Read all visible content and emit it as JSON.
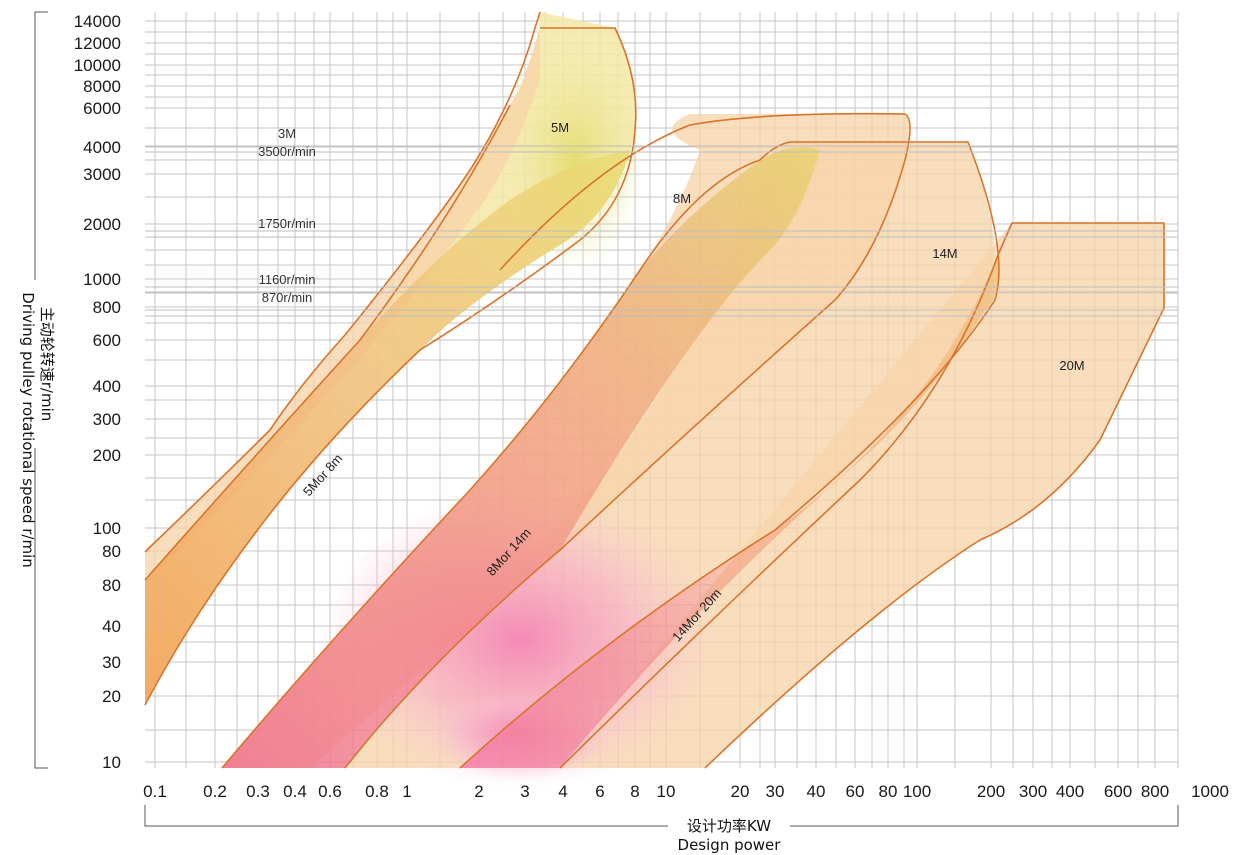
{
  "chart_data": {
    "type": "area",
    "x_scale": "log",
    "y_scale": "log",
    "xlabel_cn": "设计功率KW",
    "xlabel_en": "Design power",
    "ylabel_cn": "主动轮转速r/min",
    "ylabel_en": "Driving pulley rotational speed r/min",
    "x_ticks": [
      "0.1",
      "0.2",
      "0.3",
      "0.4",
      "0.6",
      "0.8",
      "1",
      "2",
      "3",
      "4",
      "6",
      "8",
      "10",
      "20",
      "30",
      "40",
      "60",
      "80",
      "100",
      "200",
      "300",
      "400",
      "600",
      "800",
      "1000"
    ],
    "y_ticks": [
      "10",
      "20",
      "30",
      "40",
      "80",
      "80",
      "100",
      "200",
      "300",
      "400",
      "600",
      "800",
      "1000",
      "2000",
      "3000",
      "4000",
      "6000",
      "8000",
      "10000",
      "12000",
      "14000"
    ],
    "speed_marks": [
      {
        "label": "3500r/min",
        "above": "3M"
      },
      {
        "label": "1750r/min"
      },
      {
        "label": "1160r/min"
      },
      {
        "label": "870r/min"
      }
    ],
    "regions": [
      {
        "name": "5M",
        "label": "5M"
      },
      {
        "name": "8M",
        "label": "8M"
      },
      {
        "name": "14M",
        "label": "14M"
      },
      {
        "name": "20M",
        "label": "20M"
      }
    ],
    "band_labels": [
      "5Mor 8m",
      "8Mor 14m",
      "14Mor 20m"
    ],
    "colors": {
      "outline": "#d9742a",
      "fill": "#f7d3a8",
      "band": "#ee7d6f",
      "pink": "#f49ac0",
      "yellow": "#e4e07a",
      "grid": "#c6c6c6"
    }
  }
}
